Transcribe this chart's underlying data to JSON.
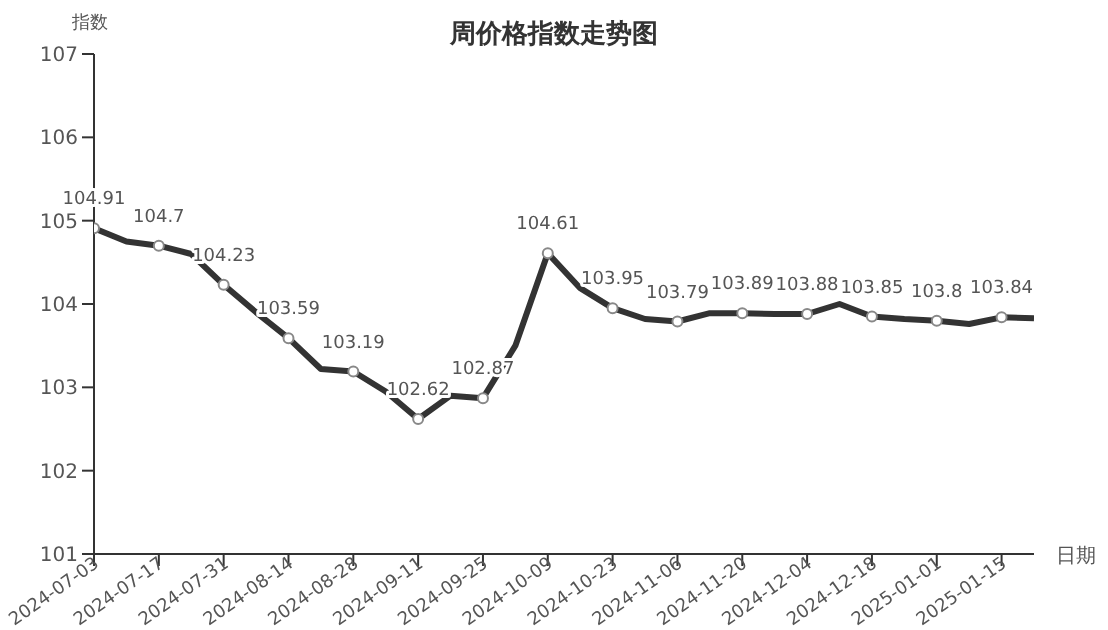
{
  "chart_data": {
    "type": "line",
    "title": "周价格指数走势图",
    "xlabel": "日期",
    "ylabel": "指数",
    "categories": [
      "2024-07-03",
      null,
      "2024-07-17",
      null,
      "2024-07-31",
      null,
      "2024-08-14",
      null,
      "2024-08-28",
      null,
      "2024-09-11",
      null,
      "2024-09-25",
      null,
      "2024-10-09",
      null,
      "2024-10-23",
      null,
      "2024-11-06",
      null,
      "2024-11-20",
      null,
      "2024-12-04",
      null,
      "2024-12-18",
      null,
      "2025-01-01",
      null,
      "2025-01-15",
      null
    ],
    "series": [
      {
        "color": "#333333",
        "values": [
          104.91,
          104.75,
          104.7,
          104.6,
          104.23,
          103.9,
          103.59,
          103.22,
          103.19,
          102.95,
          102.62,
          102.9,
          102.87,
          103.5,
          104.61,
          104.19,
          103.95,
          103.82,
          103.79,
          103.89,
          103.89,
          103.88,
          103.88,
          104.0,
          103.85,
          103.82,
          103.8,
          103.76,
          103.84,
          103.83
        ],
        "value_labels": [
          "104.91",
          null,
          "104.7",
          null,
          "104.23",
          null,
          "103.59",
          null,
          "103.19",
          null,
          "102.62",
          null,
          "102.87",
          null,
          "104.61",
          null,
          "103.95",
          null,
          "103.79",
          null,
          "103.89",
          null,
          "103.88",
          null,
          "103.85",
          null,
          "103.8",
          null,
          "103.84",
          null
        ]
      }
    ],
    "ylim": [
      101,
      107
    ],
    "yticks": [
      101,
      102,
      103,
      104,
      105,
      106,
      107
    ],
    "grid": false,
    "marker": "circle",
    "line_style": "solid"
  }
}
